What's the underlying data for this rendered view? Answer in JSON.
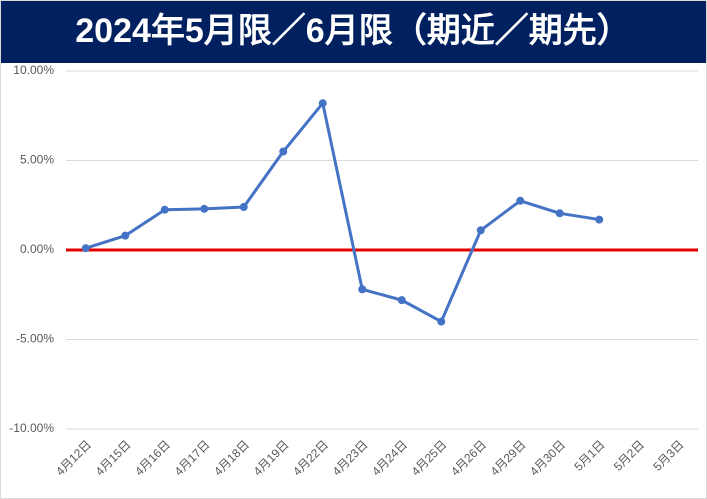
{
  "chart_data": {
    "type": "line",
    "title": "2024年5月限／6月限（期近／期先）",
    "categories": [
      "4月12日",
      "4月15日",
      "4月16日",
      "4月17日",
      "4月18日",
      "4月19日",
      "4月22日",
      "4月23日",
      "4月24日",
      "4月25日",
      "4月26日",
      "4月29日",
      "4月30日",
      "5月1日",
      "5月2日",
      "5月3日"
    ],
    "series": [
      {
        "name": "5月限／6月限",
        "color": "#4472c4",
        "values": [
          0.1,
          0.8,
          2.25,
          2.3,
          2.4,
          5.5,
          8.2,
          -2.2,
          -2.8,
          -4.0,
          1.1,
          2.75,
          2.05,
          1.7,
          null,
          null
        ]
      }
    ],
    "ylim": [
      -10,
      10
    ],
    "yticks": [
      {
        "value": -10,
        "label": "-10.00%"
      },
      {
        "value": -5,
        "label": "-5.00%"
      },
      {
        "value": 0,
        "label": "0.00%"
      },
      {
        "value": 5,
        "label": "5.00%"
      },
      {
        "value": 10,
        "label": "10.00%"
      }
    ],
    "grid": true,
    "zero_line_color": "#e00000",
    "title_background": "#002060"
  }
}
